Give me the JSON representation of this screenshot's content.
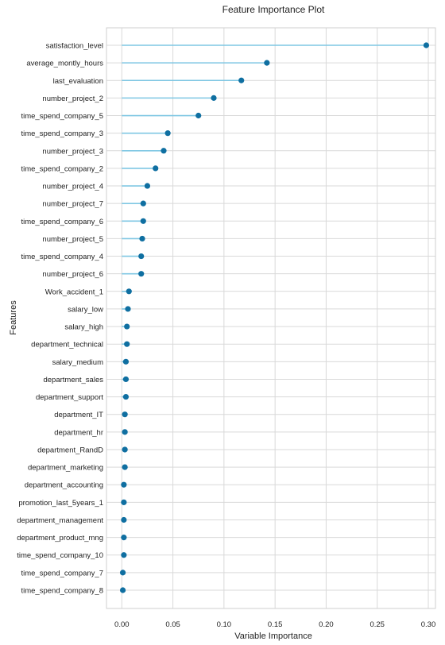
{
  "chart_data": {
    "type": "lollipop",
    "title": "Feature Importance Plot",
    "xlabel": "Variable Importance",
    "ylabel": "Features",
    "xlim": [
      -0.015,
      0.307
    ],
    "xticks": [
      0.0,
      0.05,
      0.1,
      0.15,
      0.2,
      0.25,
      0.3
    ],
    "xtick_labels": [
      "0.00",
      "0.05",
      "0.10",
      "0.15",
      "0.20",
      "0.25",
      "0.30"
    ],
    "grid": true,
    "colors": {
      "stem": "#7fc7e3",
      "dot": "#0f6fa1",
      "grid": "#d9d9d9",
      "frame": "#cfcfcf"
    },
    "categories": [
      "satisfaction_level",
      "average_montly_hours",
      "last_evaluation",
      "number_project_2",
      "time_spend_company_5",
      "time_spend_company_3",
      "number_project_3",
      "time_spend_company_2",
      "number_project_4",
      "number_project_7",
      "time_spend_company_6",
      "number_project_5",
      "time_spend_company_4",
      "number_project_6",
      "Work_accident_1",
      "salary_low",
      "salary_high",
      "department_technical",
      "salary_medium",
      "department_sales",
      "department_support",
      "department_IT",
      "department_hr",
      "department_RandD",
      "department_marketing",
      "department_accounting",
      "promotion_last_5years_1",
      "department_management",
      "department_product_mng",
      "time_spend_company_10",
      "time_spend_company_7",
      "time_spend_company_8"
    ],
    "values": [
      0.298,
      0.142,
      0.117,
      0.09,
      0.075,
      0.045,
      0.041,
      0.033,
      0.025,
      0.021,
      0.021,
      0.02,
      0.019,
      0.019,
      0.007,
      0.006,
      0.005,
      0.005,
      0.004,
      0.004,
      0.004,
      0.003,
      0.003,
      0.003,
      0.003,
      0.002,
      0.002,
      0.002,
      0.002,
      0.002,
      0.001,
      0.001
    ]
  }
}
